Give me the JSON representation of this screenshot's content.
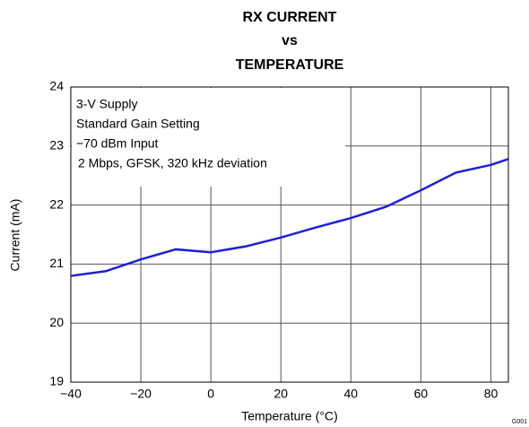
{
  "chart_data": {
    "type": "line",
    "title": [
      "RX CURRENT",
      "vs",
      "TEMPERATURE"
    ],
    "xlabel": "Temperature (°C)",
    "ylabel": "Current (mA)",
    "annotations": [
      "3-V Supply",
      "Standard Gain Setting",
      "−70 dBm Input",
      "2 Mbps, GFSK, 320 kHz deviation"
    ],
    "figure_id": "G001",
    "x": [
      -40,
      -30,
      -20,
      -10,
      0,
      10,
      20,
      30,
      40,
      50,
      60,
      70,
      80,
      85
    ],
    "series": [
      {
        "color": "#1f1fd6",
        "values": [
          20.8,
          20.88,
          21.08,
          21.25,
          21.2,
          21.3,
          21.45,
          21.62,
          21.78,
          21.97,
          22.25,
          22.55,
          22.68,
          22.78
        ]
      }
    ],
    "xlim": [
      -40,
      85
    ],
    "ylim": [
      19,
      24
    ],
    "xticks": [
      {
        "value": -40,
        "label": "−40"
      },
      {
        "value": -20,
        "label": "−20"
      },
      0,
      20,
      40,
      60,
      80
    ],
    "yticks": [
      19,
      20,
      21,
      22,
      23,
      24
    ],
    "grid": true
  }
}
